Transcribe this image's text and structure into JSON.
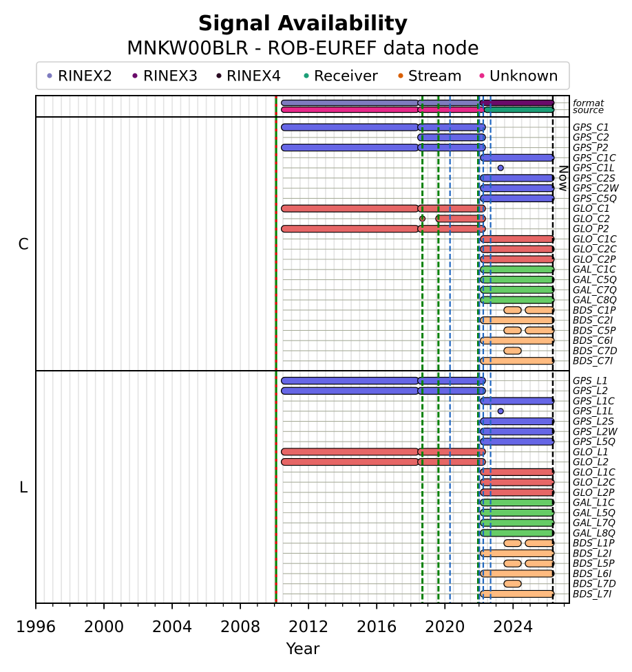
{
  "chart_data": {
    "type": "bar",
    "orientation": "horizontal-timeline",
    "title": "Signal Availability",
    "subtitle": "MNKW00BLR - ROB-EUREF data node",
    "xlabel": "Year",
    "ylabel": "",
    "xlim": [
      1996,
      2027.3
    ],
    "xticks": [
      1996,
      2000,
      2004,
      2008,
      2012,
      2016,
      2020,
      2024
    ],
    "xtick_labels": [
      "1996",
      "2000",
      "2004",
      "2008",
      "2012",
      "2016",
      "2020",
      "2024"
    ],
    "minor_tick_step_years": 1,
    "grid": true,
    "grid_step_years": 0.5,
    "legend_position": "top",
    "legend": [
      {
        "label": "RINEX2",
        "color": "#7e7bbf"
      },
      {
        "label": "RINEX3",
        "color": "#6a0a6a"
      },
      {
        "label": "RINEX4",
        "color": "#2a0a22"
      },
      {
        "label": "Receiver",
        "color": "#1b9e77"
      },
      {
        "label": "Stream",
        "color": "#d95f02"
      },
      {
        "label": "Unknown",
        "color": "#e7298a"
      }
    ],
    "system_colors": {
      "GPS": "#6666e6",
      "GLO": "#e66666",
      "GAL": "#66cc66",
      "BDS": "#ffbb80"
    },
    "row_line_start": 2010.5,
    "sections": [
      {
        "name": "",
        "rows": [
          {
            "label": "format",
            "segments": [
              {
                "start": 2010.4,
                "end": 2018.4,
                "category": "RINEX2"
              },
              {
                "start": 2018.4,
                "end": 2022.05,
                "category": "RINEX2"
              },
              {
                "start": 2022.05,
                "end": 2026.33,
                "category": "RINEX3"
              }
            ]
          },
          {
            "label": "source",
            "segments": [
              {
                "start": 2010.4,
                "end": 2018.4,
                "category": "Unknown"
              },
              {
                "start": 2018.4,
                "end": 2022.3,
                "category": "Unknown"
              },
              {
                "start": 2022.3,
                "end": 2026.33,
                "category": "Receiver"
              }
            ]
          }
        ]
      },
      {
        "name": "C",
        "rows": [
          {
            "label": "GPS_C1",
            "system": "GPS",
            "segments": [
              {
                "start": 2010.4,
                "end": 2018.4
              },
              {
                "start": 2018.4,
                "end": 2022.3
              }
            ]
          },
          {
            "label": "GPS_C2",
            "system": "GPS",
            "segments": [
              {
                "start": 2018.4,
                "end": 2022.3
              }
            ]
          },
          {
            "label": "GPS_P2",
            "system": "GPS",
            "segments": [
              {
                "start": 2010.4,
                "end": 2018.4
              },
              {
                "start": 2018.4,
                "end": 2022.3
              }
            ]
          },
          {
            "label": "GPS_C1C",
            "system": "GPS",
            "segments": [
              {
                "start": 2022.08,
                "end": 2026.33
              }
            ]
          },
          {
            "label": "GPS_C1L",
            "system": "GPS",
            "segments": [],
            "points": [
              2023.27
            ]
          },
          {
            "label": "GPS_C2S",
            "system": "GPS",
            "segments": [
              {
                "start": 2022.08,
                "end": 2026.33
              }
            ]
          },
          {
            "label": "GPS_C2W",
            "system": "GPS",
            "segments": [
              {
                "start": 2022.08,
                "end": 2026.33
              }
            ]
          },
          {
            "label": "GPS_C5Q",
            "system": "GPS",
            "segments": [
              {
                "start": 2022.08,
                "end": 2026.33
              }
            ]
          },
          {
            "label": "GLO_C1",
            "system": "GLO",
            "segments": [
              {
                "start": 2010.4,
                "end": 2018.4
              },
              {
                "start": 2018.4,
                "end": 2022.3
              }
            ]
          },
          {
            "label": "GLO_C2",
            "system": "GLO",
            "segments": [
              {
                "start": 2019.46,
                "end": 2022.3
              }
            ],
            "points": [
              2018.68
            ]
          },
          {
            "label": "GLO_P2",
            "system": "GLO",
            "segments": [
              {
                "start": 2010.4,
                "end": 2018.4
              },
              {
                "start": 2018.4,
                "end": 2022.3
              }
            ]
          },
          {
            "label": "GLO_C1C",
            "system": "GLO",
            "segments": [
              {
                "start": 2022.08,
                "end": 2026.33
              }
            ]
          },
          {
            "label": "GLO_C2C",
            "system": "GLO",
            "segments": [
              {
                "start": 2022.08,
                "end": 2026.33
              }
            ]
          },
          {
            "label": "GLO_C2P",
            "system": "GLO",
            "segments": [
              {
                "start": 2022.08,
                "end": 2026.33
              }
            ]
          },
          {
            "label": "GAL_C1C",
            "system": "GAL",
            "segments": [
              {
                "start": 2022.08,
                "end": 2026.33
              }
            ]
          },
          {
            "label": "GAL_C5Q",
            "system": "GAL",
            "segments": [
              {
                "start": 2022.08,
                "end": 2026.33
              }
            ]
          },
          {
            "label": "GAL_C7Q",
            "system": "GAL",
            "segments": [
              {
                "start": 2022.08,
                "end": 2026.33
              }
            ]
          },
          {
            "label": "GAL_C8Q",
            "system": "GAL",
            "segments": [
              {
                "start": 2022.08,
                "end": 2026.33
              }
            ]
          },
          {
            "label": "BDS_C1P",
            "system": "BDS",
            "segments": [
              {
                "start": 2023.46,
                "end": 2024.4
              },
              {
                "start": 2024.71,
                "end": 2026.33
              }
            ]
          },
          {
            "label": "BDS_C2I",
            "system": "BDS",
            "segments": [
              {
                "start": 2022.08,
                "end": 2026.33
              }
            ]
          },
          {
            "label": "BDS_C5P",
            "system": "BDS",
            "segments": [
              {
                "start": 2023.46,
                "end": 2024.4
              },
              {
                "start": 2024.71,
                "end": 2026.33
              }
            ]
          },
          {
            "label": "BDS_C6I",
            "system": "BDS",
            "segments": [
              {
                "start": 2022.08,
                "end": 2026.33
              }
            ]
          },
          {
            "label": "BDS_C7D",
            "system": "BDS",
            "segments": [
              {
                "start": 2023.46,
                "end": 2024.4
              }
            ]
          },
          {
            "label": "BDS_C7I",
            "system": "BDS",
            "segments": [
              {
                "start": 2022.08,
                "end": 2026.33
              }
            ]
          }
        ]
      },
      {
        "name": "L",
        "rows": [
          {
            "label": "GPS_L1",
            "system": "GPS",
            "segments": [
              {
                "start": 2010.4,
                "end": 2018.4
              },
              {
                "start": 2018.4,
                "end": 2022.3
              }
            ]
          },
          {
            "label": "GPS_L2",
            "system": "GPS",
            "segments": [
              {
                "start": 2010.4,
                "end": 2018.4
              },
              {
                "start": 2018.4,
                "end": 2022.3
              }
            ]
          },
          {
            "label": "GPS_L1C",
            "system": "GPS",
            "segments": [
              {
                "start": 2022.08,
                "end": 2026.33
              }
            ]
          },
          {
            "label": "GPS_L1L",
            "system": "GPS",
            "segments": [],
            "points": [
              2023.27
            ]
          },
          {
            "label": "GPS_L2S",
            "system": "GPS",
            "segments": [
              {
                "start": 2022.08,
                "end": 2026.33
              }
            ]
          },
          {
            "label": "GPS_L2W",
            "system": "GPS",
            "segments": [
              {
                "start": 2022.08,
                "end": 2026.33
              }
            ]
          },
          {
            "label": "GPS_L5Q",
            "system": "GPS",
            "segments": [
              {
                "start": 2022.08,
                "end": 2026.33
              }
            ]
          },
          {
            "label": "GLO_L1",
            "system": "GLO",
            "segments": [
              {
                "start": 2010.4,
                "end": 2018.4
              },
              {
                "start": 2018.4,
                "end": 2022.3
              }
            ]
          },
          {
            "label": "GLO_L2",
            "system": "GLO",
            "segments": [
              {
                "start": 2010.4,
                "end": 2018.4
              },
              {
                "start": 2018.4,
                "end": 2022.3
              }
            ]
          },
          {
            "label": "GLO_L1C",
            "system": "GLO",
            "segments": [
              {
                "start": 2022.08,
                "end": 2026.33
              }
            ]
          },
          {
            "label": "GLO_L2C",
            "system": "GLO",
            "segments": [
              {
                "start": 2022.08,
                "end": 2026.33
              }
            ]
          },
          {
            "label": "GLO_L2P",
            "system": "GLO",
            "segments": [
              {
                "start": 2022.08,
                "end": 2026.33
              }
            ]
          },
          {
            "label": "GAL_L1C",
            "system": "GAL",
            "segments": [
              {
                "start": 2022.08,
                "end": 2026.33
              }
            ]
          },
          {
            "label": "GAL_L5Q",
            "system": "GAL",
            "segments": [
              {
                "start": 2022.08,
                "end": 2026.33
              }
            ]
          },
          {
            "label": "GAL_L7Q",
            "system": "GAL",
            "segments": [
              {
                "start": 2022.08,
                "end": 2026.33
              }
            ]
          },
          {
            "label": "GAL_L8Q",
            "system": "GAL",
            "segments": [
              {
                "start": 2022.08,
                "end": 2026.33
              }
            ]
          },
          {
            "label": "BDS_L1P",
            "system": "BDS",
            "segments": [
              {
                "start": 2023.46,
                "end": 2024.4
              },
              {
                "start": 2024.71,
                "end": 2026.33
              }
            ]
          },
          {
            "label": "BDS_L2I",
            "system": "BDS",
            "segments": [
              {
                "start": 2022.08,
                "end": 2026.33
              }
            ]
          },
          {
            "label": "BDS_L5P",
            "system": "BDS",
            "segments": [
              {
                "start": 2023.46,
                "end": 2024.4
              },
              {
                "start": 2024.71,
                "end": 2026.33
              }
            ]
          },
          {
            "label": "BDS_L6I",
            "system": "BDS",
            "segments": [
              {
                "start": 2022.08,
                "end": 2026.33
              }
            ]
          },
          {
            "label": "BDS_L7D",
            "system": "BDS",
            "segments": [
              {
                "start": 2023.46,
                "end": 2024.4
              }
            ]
          },
          {
            "label": "BDS_L7I",
            "system": "BDS",
            "segments": [
              {
                "start": 2022.08,
                "end": 2026.33
              }
            ]
          }
        ]
      }
    ],
    "event_lines": [
      {
        "year": 2010.1,
        "colors": [
          "#008000",
          "#e00000"
        ],
        "style": "dashed-two-tone"
      },
      {
        "year": 2018.68,
        "colors": [
          "#008000"
        ],
        "style": "dashed"
      },
      {
        "year": 2019.62,
        "colors": [
          "#008000"
        ],
        "style": "dashed"
      },
      {
        "year": 2020.3,
        "colors": [
          "#1f66c0"
        ],
        "style": "dashed"
      },
      {
        "year": 2021.95,
        "colors": [
          "#008000"
        ],
        "style": "dashed"
      },
      {
        "year": 2022.02,
        "colors": [
          "#1f66c0"
        ],
        "style": "dashed"
      },
      {
        "year": 2022.25,
        "colors": [
          "#1f66c0"
        ],
        "style": "dashed"
      },
      {
        "year": 2022.68,
        "colors": [
          "#1f66c0"
        ],
        "style": "dashed"
      }
    ],
    "now": {
      "year": 2026.33,
      "label": "Now",
      "color": "#000000"
    }
  }
}
